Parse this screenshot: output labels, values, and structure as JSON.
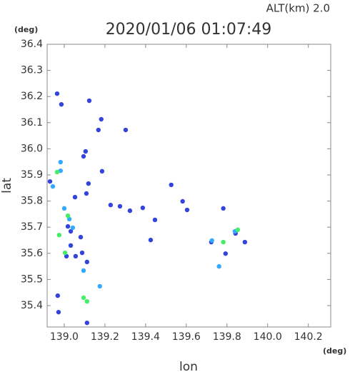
{
  "chart_data": {
    "type": "scatter",
    "title": "2020/01/06 01:07:49",
    "subtitle": "ALT(km)  2.0",
    "y_unit": "(deg)",
    "x_unit": "(deg)",
    "x_label": "lon",
    "y_label": "lat",
    "xlim": [
      138.916,
      140.31
    ],
    "ylim": [
      35.318,
      36.4
    ],
    "xticks": [
      {
        "value": 139.0,
        "label": "139.0"
      },
      139.2,
      139.4,
      139.6,
      139.8,
      {
        "value": 140.0,
        "label": "140.0"
      },
      140.2
    ],
    "yticks": [
      {
        "value": 35.4,
        "label": "35.4"
      },
      35.5,
      35.6,
      35.7,
      35.8,
      35.9,
      {
        "value": 36.0,
        "label": "36.0"
      },
      36.1,
      36.2,
      36.3,
      36.4
    ],
    "series": [
      {
        "color": "#3344dd",
        "x": [
          138.965,
          138.986,
          139.123,
          139.182,
          139.168,
          139.302,
          139.105,
          139.095,
          139.186,
          139.119,
          139.109,
          139.053,
          139.228,
          139.274,
          139.323,
          139.386,
          139.446,
          139.526,
          139.582,
          139.604,
          139.425,
          139.723,
          139.782,
          139.842,
          139.888,
          139.793,
          139.032,
          139.056,
          139.088,
          139.112,
          139.011,
          138.968,
          138.972,
          139.112,
          139.018,
          139.032,
          139.081,
          138.93
        ],
        "y": [
          36.211,
          36.17,
          36.184,
          36.113,
          36.072,
          36.072,
          35.99,
          35.971,
          35.914,
          35.867,
          35.829,
          35.815,
          35.785,
          35.78,
          35.763,
          35.774,
          35.728,
          35.862,
          35.799,
          35.766,
          35.651,
          35.643,
          35.772,
          35.676,
          35.643,
          35.599,
          35.63,
          35.589,
          35.602,
          35.567,
          35.589,
          35.438,
          35.375,
          35.334,
          35.703,
          35.684,
          35.662,
          35.875
        ]
      },
      {
        "color": "#33aaff",
        "x": [
          138.982,
          138.982,
          139.0,
          139.025,
          139.042,
          139.175,
          139.095,
          139.761,
          139.726,
          139.839,
          138.944
        ],
        "y": [
          35.949,
          35.916,
          35.772,
          35.731,
          35.698,
          35.474,
          35.534,
          35.55,
          35.649,
          35.684,
          35.856
        ]
      },
      {
        "color": "#44ee66",
        "x": [
          138.965,
          139.018,
          138.975,
          139.004,
          139.095,
          139.112,
          139.782,
          139.853
        ],
        "y": [
          35.911,
          35.744,
          35.67,
          35.602,
          35.43,
          35.416,
          35.643,
          35.69
        ]
      }
    ]
  }
}
